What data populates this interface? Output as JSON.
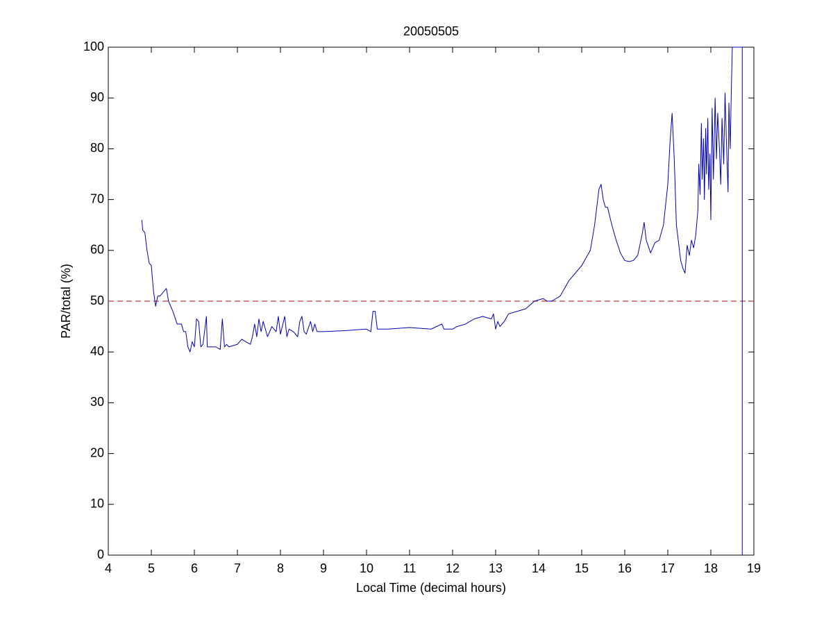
{
  "chart_data": {
    "type": "line",
    "title": "20050505",
    "x_label": "Local Time (decimal hours)",
    "y_label": "PAR/total (%)",
    "xlim": [
      4,
      19
    ],
    "xticks": [
      4,
      5,
      6,
      7,
      8,
      9,
      10,
      11,
      12,
      13,
      14,
      15,
      16,
      17,
      18,
      19
    ],
    "ylim": [
      0,
      100
    ],
    "yticks": [
      0,
      10,
      20,
      30,
      40,
      50,
      60,
      70,
      80,
      90,
      100
    ],
    "grid": false,
    "reference_line": {
      "value": 50,
      "color": "#c0393b"
    },
    "series": [
      {
        "color": "#0000b4",
        "x": [
          4.78,
          4.8,
          4.85,
          4.9,
          4.95,
          5.0,
          5.05,
          5.1,
          5.15,
          5.2,
          5.3,
          5.35,
          5.4,
          5.5,
          5.6,
          5.7,
          5.75,
          5.8,
          5.85,
          5.9,
          5.95,
          6.0,
          6.05,
          6.1,
          6.15,
          6.2,
          6.28,
          6.3,
          6.4,
          6.5,
          6.6,
          6.65,
          6.7,
          6.75,
          6.8,
          7.0,
          7.1,
          7.2,
          7.3,
          7.35,
          7.4,
          7.45,
          7.5,
          7.55,
          7.6,
          7.7,
          7.8,
          7.9,
          7.95,
          8.0,
          8.1,
          8.15,
          8.2,
          8.3,
          8.4,
          8.45,
          8.5,
          8.55,
          8.6,
          8.7,
          8.75,
          8.8,
          8.85,
          9.0,
          9.5,
          10.0,
          10.1,
          10.15,
          10.2,
          10.25,
          10.5,
          11.0,
          11.5,
          11.75,
          11.8,
          12.0,
          12.1,
          12.3,
          12.5,
          12.7,
          12.9,
          12.95,
          13.0,
          13.05,
          13.1,
          13.2,
          13.3,
          13.5,
          13.7,
          13.9,
          14.1,
          14.2,
          14.3,
          14.5,
          14.7,
          15.0,
          15.2,
          15.3,
          15.4,
          15.45,
          15.5,
          15.55,
          15.6,
          15.7,
          15.8,
          15.9,
          16.0,
          16.1,
          16.2,
          16.3,
          16.4,
          16.45,
          16.5,
          16.6,
          16.7,
          16.8,
          16.9,
          17.0,
          17.05,
          17.1,
          17.15,
          17.2,
          17.3,
          17.35,
          17.4,
          17.45,
          17.5,
          17.55,
          17.6,
          17.65,
          17.7,
          17.72,
          17.75,
          17.78,
          17.8,
          17.83,
          17.85,
          17.88,
          17.9,
          17.93,
          17.95,
          17.98,
          18.0,
          18.03,
          18.06,
          18.1,
          18.13,
          18.16,
          18.2,
          18.23,
          18.26,
          18.3,
          18.33,
          18.36,
          18.4,
          18.42,
          18.45,
          18.48,
          18.5,
          18.73,
          18.73
        ],
        "values": [
          66,
          64,
          63.5,
          60,
          57.5,
          57,
          52,
          49,
          51,
          51,
          52,
          52.5,
          50,
          48,
          45.5,
          45.5,
          44,
          44,
          41,
          40,
          42,
          41,
          46.5,
          46,
          41,
          41.5,
          47,
          41,
          41,
          41,
          40.5,
          46.5,
          41,
          41.5,
          41,
          41.5,
          42.5,
          42,
          41.5,
          43,
          45.5,
          43,
          46.5,
          44,
          46,
          43,
          45,
          44,
          47,
          43.5,
          47,
          43,
          44.5,
          44,
          43,
          46,
          47,
          44,
          43.5,
          46,
          44,
          45.5,
          44,
          44,
          44.2,
          44.5,
          44,
          48,
          48,
          44.5,
          44.5,
          44.8,
          44.5,
          45.5,
          44.5,
          44.5,
          45,
          45.5,
          46.5,
          47,
          46.5,
          47.5,
          44.5,
          46,
          45,
          46,
          47.5,
          48,
          48.5,
          50,
          50.5,
          50,
          50,
          51,
          54,
          57,
          60,
          65,
          72,
          73,
          70,
          68.5,
          68.5,
          65,
          62,
          59.5,
          58,
          57.8,
          58,
          59,
          63,
          65.5,
          62,
          59.5,
          61.5,
          62,
          65,
          73,
          81,
          87,
          78,
          65,
          58,
          56.5,
          55.5,
          61,
          59,
          62,
          60.5,
          63,
          68,
          77,
          71,
          85,
          74,
          82,
          70,
          84,
          75,
          86,
          72,
          79,
          66,
          88,
          74,
          90,
          78,
          87,
          80,
          73,
          86,
          77,
          91,
          82,
          71.5,
          89,
          80,
          93,
          100,
          100,
          0
        ]
      }
    ]
  }
}
